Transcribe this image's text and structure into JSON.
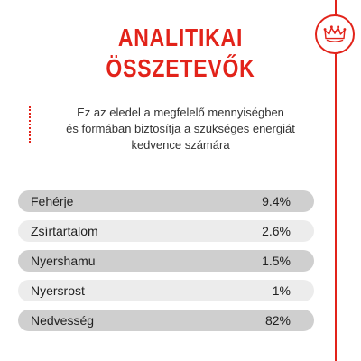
{
  "title": {
    "line1": "ANALITIKAI",
    "line2": "ÖSSZETEVŐK"
  },
  "description": {
    "line1": "Ez az eledel a megfelelő mennyiségben",
    "line2": "és formában biztosítja a szükséges energiát",
    "line3": "kedvence számára"
  },
  "logo": {
    "icon": "crown-icon",
    "color": "#e2231a"
  },
  "colors": {
    "accent": "#e2231a",
    "row_dark": "#cfcfcf",
    "row_light": "#ececec"
  },
  "nutrients": [
    {
      "name": "Fehérje",
      "value": "9.4%"
    },
    {
      "name": "Zsírtartalom",
      "value": "2.6%"
    },
    {
      "name": "Nyershamu",
      "value": "1.5%"
    },
    {
      "name": "Nyersrost",
      "value": "1%"
    },
    {
      "name": "Nedvesség",
      "value": "82%"
    }
  ]
}
